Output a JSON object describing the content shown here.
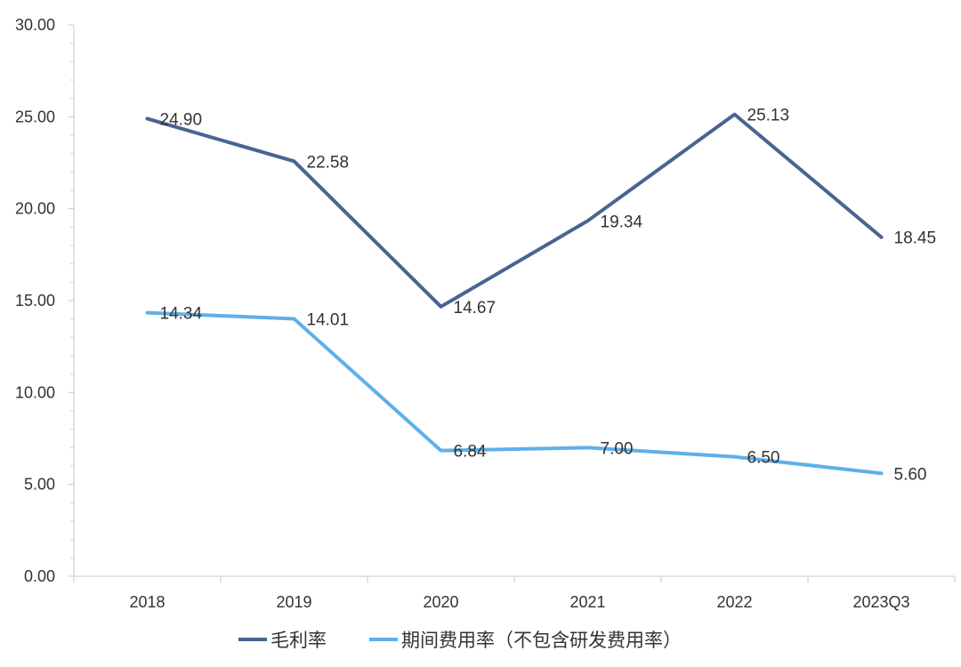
{
  "chart_data": {
    "type": "line",
    "categories": [
      "2018",
      "2019",
      "2020",
      "2021",
      "2022",
      "2023Q3"
    ],
    "series": [
      {
        "name": "毛利率",
        "values": [
          24.9,
          22.58,
          14.67,
          19.34,
          25.13,
          18.45
        ],
        "color": "#4a6491"
      },
      {
        "name": "期间费用率（不包含研发费用率）",
        "values": [
          14.34,
          14.01,
          6.84,
          7.0,
          6.5,
          5.6
        ],
        "color": "#5fb0e8"
      }
    ],
    "y_ticks": [
      "0.00",
      "5.00",
      "10.00",
      "15.00",
      "20.00",
      "25.00",
      "30.00"
    ],
    "ylim": [
      0,
      30
    ],
    "grid": false,
    "legend_position": "bottom"
  }
}
